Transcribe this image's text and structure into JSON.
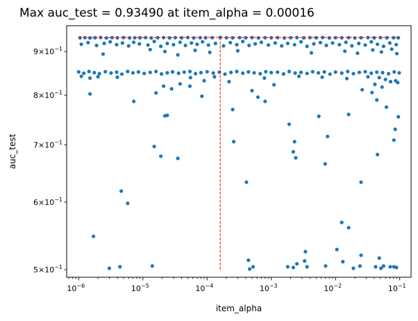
{
  "chart_data": {
    "type": "scatter",
    "title": "Max auc_test = 0.93490 at item_alpha = 0.00016",
    "xlabel": "item_alpha",
    "ylabel": "auc_test",
    "xscale": "log",
    "yscale": "log",
    "xlim": [
      6.5e-07,
      0.15
    ],
    "ylim": [
      0.49,
      0.965
    ],
    "grid": false,
    "legend": "none",
    "marker_color": "#1f77b4",
    "guide_color": "#ff0000",
    "best": {
      "x": 0.00016,
      "y": 0.9349
    },
    "x_ticks": [
      {
        "value": 1e-06,
        "base": "10",
        "exp": "−6"
      },
      {
        "value": 1e-05,
        "base": "10",
        "exp": "−5"
      },
      {
        "value": 0.0001,
        "base": "10",
        "exp": "−4"
      },
      {
        "value": 0.001,
        "base": "10",
        "exp": "−3"
      },
      {
        "value": 0.01,
        "base": "10",
        "exp": "−2"
      },
      {
        "value": 0.1,
        "base": "10",
        "exp": "−1"
      }
    ],
    "y_ticks": [
      {
        "value": 0.9,
        "mant": "9",
        "base": "10",
        "exp": "−1"
      },
      {
        "value": 0.8,
        "mant": "8",
        "base": "10",
        "exp": "−1"
      },
      {
        "value": 0.7,
        "mant": "7",
        "base": "10",
        "exp": "−1"
      },
      {
        "value": 0.6,
        "mant": "6",
        "base": "10",
        "exp": "−1"
      },
      {
        "value": 0.5,
        "mant": "5",
        "base": "10",
        "exp": "−1"
      }
    ],
    "points": [
      [
        1.05e-06,
        0.934
      ],
      [
        1.25e-06,
        0.9345
      ],
      [
        1.5e-06,
        0.9338
      ],
      [
        1.8e-06,
        0.9342
      ],
      [
        2.2e-06,
        0.9347
      ],
      [
        2.7e-06,
        0.9336
      ],
      [
        3.3e-06,
        0.9344
      ],
      [
        4e-06,
        0.9341
      ],
      [
        5e-06,
        0.9346
      ],
      [
        6.2e-06,
        0.9339
      ],
      [
        7.5e-06,
        0.9343
      ],
      [
        9e-06,
        0.934
      ],
      [
        1.1e-05,
        0.9345
      ],
      [
        1.35e-05,
        0.9337
      ],
      [
        1.7e-05,
        0.9342
      ],
      [
        2.1e-05,
        0.9346
      ],
      [
        2.6e-05,
        0.9339
      ],
      [
        3.2e-05,
        0.9344
      ],
      [
        4e-05,
        0.9341
      ],
      [
        5e-05,
        0.9347
      ],
      [
        6.2e-05,
        0.9338
      ],
      [
        7.8e-05,
        0.9343
      ],
      [
        9.5e-05,
        0.934
      ],
      [
        0.00012,
        0.9345
      ],
      [
        0.00016,
        0.9349
      ],
      [
        0.0002,
        0.9342
      ],
      [
        0.00025,
        0.9339
      ],
      [
        0.00032,
        0.9344
      ],
      [
        0.0004,
        0.9341
      ],
      [
        0.0005,
        0.9346
      ],
      [
        0.00063,
        0.9338
      ],
      [
        0.0008,
        0.9343
      ],
      [
        0.001,
        0.934
      ],
      [
        0.00125,
        0.9345
      ],
      [
        0.0016,
        0.9337
      ],
      [
        0.002,
        0.9342
      ],
      [
        0.0025,
        0.9346
      ],
      [
        0.0032,
        0.9339
      ],
      [
        0.004,
        0.9344
      ],
      [
        0.005,
        0.9341
      ],
      [
        0.0063,
        0.9347
      ],
      [
        0.008,
        0.9338
      ],
      [
        0.01,
        0.9343
      ],
      [
        0.0125,
        0.934
      ],
      [
        0.016,
        0.9345
      ],
      [
        0.02,
        0.9337
      ],
      [
        0.025,
        0.9342
      ],
      [
        0.032,
        0.9346
      ],
      [
        0.04,
        0.9339
      ],
      [
        0.05,
        0.9344
      ],
      [
        0.063,
        0.9341
      ],
      [
        0.08,
        0.9343
      ],
      [
        0.095,
        0.934
      ],
      [
        1.1e-06,
        0.918
      ],
      [
        1.4e-06,
        0.922
      ],
      [
        1.9e-06,
        0.915
      ],
      [
        2.5e-06,
        0.92
      ],
      [
        3.1e-06,
        0.924
      ],
      [
        3.9e-06,
        0.917
      ],
      [
        4.8e-06,
        0.921
      ],
      [
        6e-06,
        0.914
      ],
      [
        7.2e-06,
        0.923
      ],
      [
        8.8e-06,
        0.919
      ],
      [
        1.2e-05,
        0.916
      ],
      [
        1.5e-05,
        0.925
      ],
      [
        1.9e-05,
        0.913
      ],
      [
        2.4e-05,
        0.92
      ],
      [
        3e-05,
        0.917
      ],
      [
        3.8e-05,
        0.923
      ],
      [
        4.6e-05,
        0.915
      ],
      [
        5.7e-05,
        0.921
      ],
      [
        7e-05,
        0.918
      ],
      [
        8.5e-05,
        0.924
      ],
      [
        0.000105,
        0.916
      ],
      [
        0.000135,
        0.92
      ],
      [
        0.00018,
        0.914
      ],
      [
        0.00023,
        0.922
      ],
      [
        0.00029,
        0.917
      ],
      [
        0.00036,
        0.925
      ],
      [
        0.00045,
        0.915
      ],
      [
        0.00056,
        0.919
      ],
      [
        0.0007,
        0.923
      ],
      [
        0.0009,
        0.916
      ],
      [
        0.00115,
        0.921
      ],
      [
        0.00145,
        0.914
      ],
      [
        0.0018,
        0.92
      ],
      [
        0.0023,
        0.917
      ],
      [
        0.0029,
        0.924
      ],
      [
        0.0036,
        0.913
      ],
      [
        0.0046,
        0.919
      ],
      [
        0.0058,
        0.922
      ],
      [
        0.0072,
        0.915
      ],
      [
        0.009,
        0.921
      ],
      [
        0.0115,
        0.917
      ],
      [
        0.0145,
        0.923
      ],
      [
        0.018,
        0.914
      ],
      [
        0.023,
        0.92
      ],
      [
        0.029,
        0.916
      ],
      [
        0.036,
        0.924
      ],
      [
        0.045,
        0.918
      ],
      [
        0.056,
        0.913
      ],
      [
        0.07,
        0.921
      ],
      [
        0.088,
        0.917
      ],
      [
        1.3e-05,
        0.905
      ],
      [
        2.2e-05,
        0.9
      ],
      [
        6.5e-05,
        0.903
      ],
      [
        0.00011,
        0.898
      ],
      [
        0.0003,
        0.902
      ],
      [
        0.0042,
        0.897
      ],
      [
        0.014,
        0.901
      ],
      [
        0.022,
        0.896
      ],
      [
        0.038,
        0.904
      ],
      [
        0.052,
        0.899
      ],
      [
        0.075,
        0.906
      ],
      [
        0.09,
        0.895
      ],
      [
        3.5e-05,
        0.892
      ],
      [
        2.4e-06,
        0.894
      ],
      [
        1e-06,
        0.852
      ],
      [
        1.2e-06,
        0.849
      ],
      [
        1.45e-06,
        0.853
      ],
      [
        1.75e-06,
        0.8505
      ],
      [
        2.1e-06,
        0.848
      ],
      [
        2.6e-06,
        0.8525
      ],
      [
        3.2e-06,
        0.8495
      ],
      [
        3.9e-06,
        0.8515
      ],
      [
        4.7e-06,
        0.847
      ],
      [
        5.8e-06,
        0.853
      ],
      [
        7e-06,
        0.85
      ],
      [
        8.5e-06,
        0.852
      ],
      [
        1.05e-05,
        0.8485
      ],
      [
        1.3e-05,
        0.851
      ],
      [
        1.6e-05,
        0.853
      ],
      [
        1.95e-05,
        0.8475
      ],
      [
        2.4e-05,
        0.85
      ],
      [
        2.9e-05,
        0.852
      ],
      [
        3.6e-05,
        0.849
      ],
      [
        4.4e-05,
        0.8515
      ],
      [
        5.4e-05,
        0.853
      ],
      [
        6.6e-05,
        0.848
      ],
      [
        8e-05,
        0.8505
      ],
      [
        0.0001,
        0.8525
      ],
      [
        0.000125,
        0.8495
      ],
      [
        0.000155,
        0.8515
      ],
      [
        0.00019,
        0.847
      ],
      [
        0.000235,
        0.851
      ],
      [
        0.00029,
        0.853
      ],
      [
        0.00036,
        0.849
      ],
      [
        0.00044,
        0.852
      ],
      [
        0.00054,
        0.85
      ],
      [
        0.00067,
        0.848
      ],
      [
        0.00082,
        0.8525
      ],
      [
        0.001,
        0.8505
      ],
      [
        0.00125,
        0.8515
      ],
      [
        0.00155,
        0.8475
      ],
      [
        0.0019,
        0.853
      ],
      [
        0.00235,
        0.8495
      ],
      [
        0.0029,
        0.851
      ],
      [
        0.0036,
        0.8485
      ],
      [
        0.0044,
        0.8525
      ],
      [
        0.0054,
        0.85
      ],
      [
        0.0067,
        0.852
      ],
      [
        0.0082,
        0.847
      ],
      [
        0.01,
        0.8515
      ],
      [
        0.0125,
        0.8495
      ],
      [
        0.0155,
        0.853
      ],
      [
        0.019,
        0.848
      ],
      [
        0.0235,
        0.851
      ],
      [
        0.029,
        0.8525
      ],
      [
        0.036,
        0.849
      ],
      [
        0.044,
        0.8515
      ],
      [
        0.054,
        0.8505
      ],
      [
        0.067,
        0.848
      ],
      [
        0.082,
        0.852
      ],
      [
        0.098,
        0.85
      ],
      [
        1.1e-06,
        0.842
      ],
      [
        1.5e-06,
        0.838
      ],
      [
        2e-06,
        0.841
      ],
      [
        4e-06,
        0.84
      ],
      [
        5.5e-05,
        0.839
      ],
      [
        0.00013,
        0.841
      ],
      [
        0.00078,
        0.838
      ],
      [
        0.0027,
        0.842
      ],
      [
        0.0062,
        0.84
      ],
      [
        0.015,
        0.837
      ],
      [
        0.032,
        0.841
      ],
      [
        0.048,
        0.839
      ],
      [
        0.06,
        0.835
      ],
      [
        0.072,
        0.83
      ],
      [
        0.086,
        0.832
      ],
      [
        0.093,
        0.828
      ],
      [
        0.041,
        0.824
      ],
      [
        0.053,
        0.818
      ],
      [
        2.1e-05,
        0.82
      ],
      [
        2.8e-05,
        0.814
      ],
      [
        3.8e-05,
        0.825
      ],
      [
        5.4e-05,
        0.82
      ],
      [
        9e-05,
        0.832
      ],
      [
        0.00022,
        0.83
      ],
      [
        0.0011,
        0.823
      ],
      [
        0.0005,
        0.81
      ],
      [
        1.6e-05,
        0.805
      ],
      [
        0.026,
        0.812
      ],
      [
        0.037,
        0.806
      ],
      [
        1.5e-06,
        0.803
      ],
      [
        0.00062,
        0.796
      ],
      [
        8.3e-05,
        0.798
      ],
      [
        7.2e-06,
        0.787
      ],
      [
        0.0008,
        0.787
      ],
      [
        0.044,
        0.79
      ],
      [
        0.062,
        0.775
      ],
      [
        0.00025,
        0.77
      ],
      [
        0.016,
        0.76
      ],
      [
        2.4e-05,
        0.758
      ],
      [
        2.2e-05,
        0.757
      ],
      [
        0.0055,
        0.756
      ],
      [
        0.095,
        0.755
      ],
      [
        0.085,
        0.73
      ],
      [
        0.0019,
        0.74
      ],
      [
        0.0023,
        0.706
      ],
      [
        0.0075,
        0.716
      ],
      [
        0.00026,
        0.706
      ],
      [
        0.081,
        0.709
      ],
      [
        1.5e-05,
        0.697
      ],
      [
        0.0022,
        0.687
      ],
      [
        1.9e-05,
        0.679
      ],
      [
        3.5e-05,
        0.675
      ],
      [
        0.0024,
        0.676
      ],
      [
        0.0069,
        0.665
      ],
      [
        0.045,
        0.682
      ],
      [
        0.00041,
        0.633
      ],
      [
        0.025,
        0.633
      ],
      [
        4.6e-06,
        0.618
      ],
      [
        5.8e-06,
        0.598
      ],
      [
        1.7e-06,
        0.547
      ],
      [
        0.0125,
        0.568
      ],
      [
        0.016,
        0.56
      ],
      [
        0.0105,
        0.528
      ],
      [
        0.025,
        0.52
      ],
      [
        0.0034,
        0.525
      ],
      [
        0.0033,
        0.512
      ],
      [
        0.00044,
        0.513
      ],
      [
        0.013,
        0.511
      ],
      [
        0.048,
        0.516
      ],
      [
        3e-06,
        0.502
      ],
      [
        4.4e-06,
        0.504
      ],
      [
        1.4e-05,
        0.505
      ],
      [
        0.00046,
        0.501
      ],
      [
        0.00052,
        0.504
      ],
      [
        0.0018,
        0.504
      ],
      [
        0.0022,
        0.503
      ],
      [
        0.0025,
        0.508
      ],
      [
        0.0036,
        0.504
      ],
      [
        0.007,
        0.505
      ],
      [
        0.019,
        0.502
      ],
      [
        0.024,
        0.505
      ],
      [
        0.042,
        0.504
      ],
      [
        0.051,
        0.502
      ],
      [
        0.056,
        0.505
      ],
      [
        0.071,
        0.504
      ],
      [
        0.081,
        0.504
      ],
      [
        0.089,
        0.503
      ]
    ]
  }
}
